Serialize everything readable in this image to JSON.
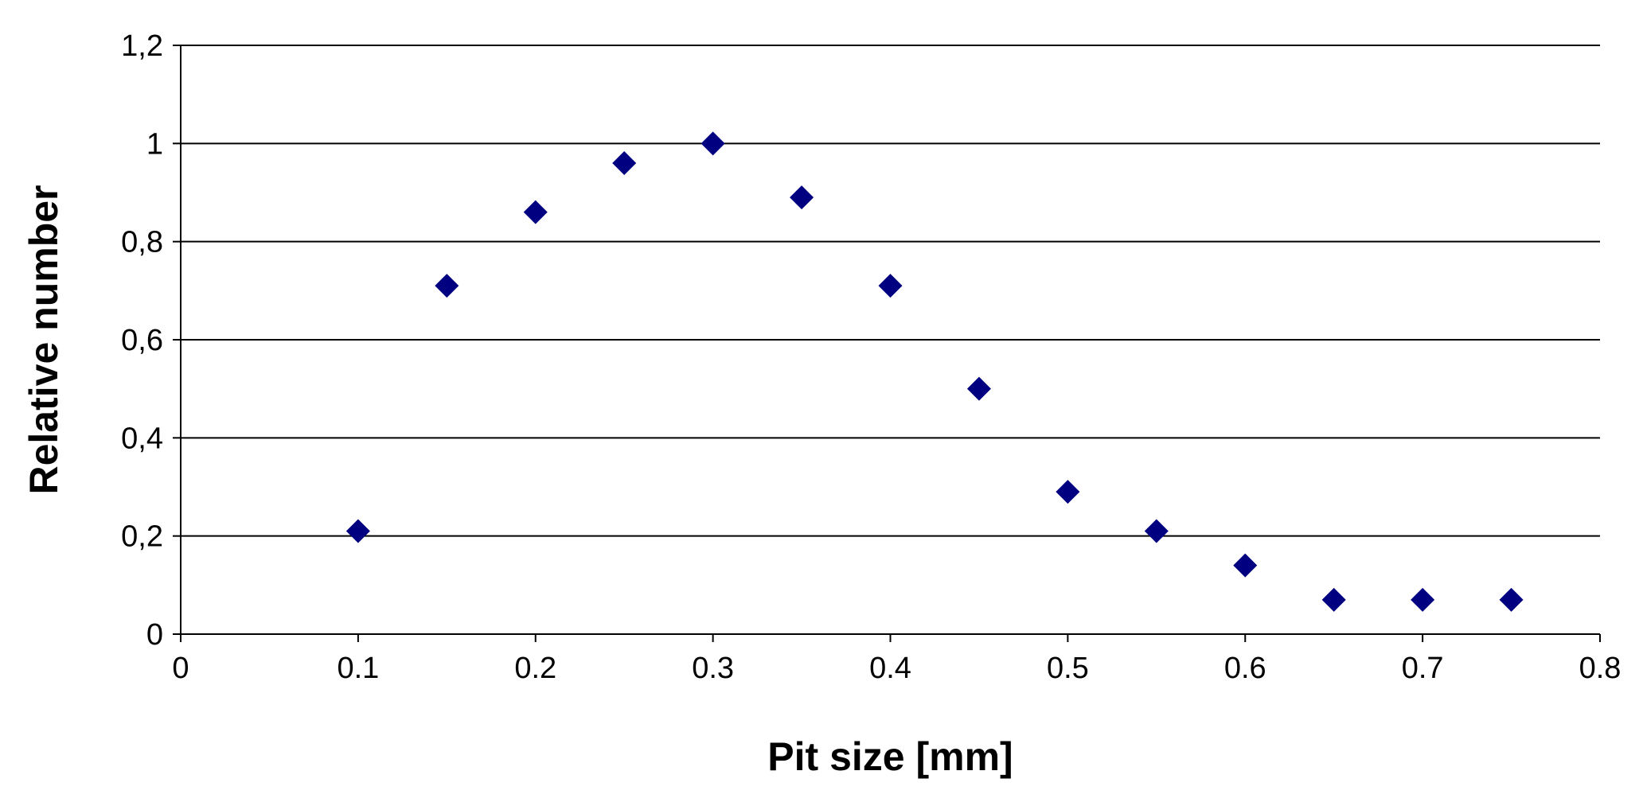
{
  "chart_data": {
    "type": "scatter",
    "title": "",
    "xlabel": "Pit size [mm]",
    "ylabel": "Relative number",
    "xlim": [
      0,
      0.8
    ],
    "ylim": [
      0,
      1.2
    ],
    "x_ticks": [
      "0",
      "0.1",
      "0.2",
      "0.3",
      "0.4",
      "0.5",
      "0.6",
      "0.7",
      "0.8"
    ],
    "y_ticks": [
      "0",
      "0,2",
      "0,4",
      "0,6",
      "0,8",
      "1",
      "1,2"
    ],
    "grid": "horizontal",
    "legend": "none",
    "marker": "diamond",
    "colors": {
      "marker": "#000080",
      "axis": "#000000",
      "grid": "#000000"
    },
    "series": [
      {
        "x": [
          0.1,
          0.15,
          0.2,
          0.25,
          0.3,
          0.35,
          0.4,
          0.45,
          0.5,
          0.55,
          0.6,
          0.65,
          0.7,
          0.75
        ],
        "y": [
          0.21,
          0.71,
          0.86,
          0.96,
          1.0,
          0.89,
          0.71,
          0.5,
          0.29,
          0.21,
          0.14,
          0.07,
          0.07,
          0.07
        ]
      }
    ]
  }
}
